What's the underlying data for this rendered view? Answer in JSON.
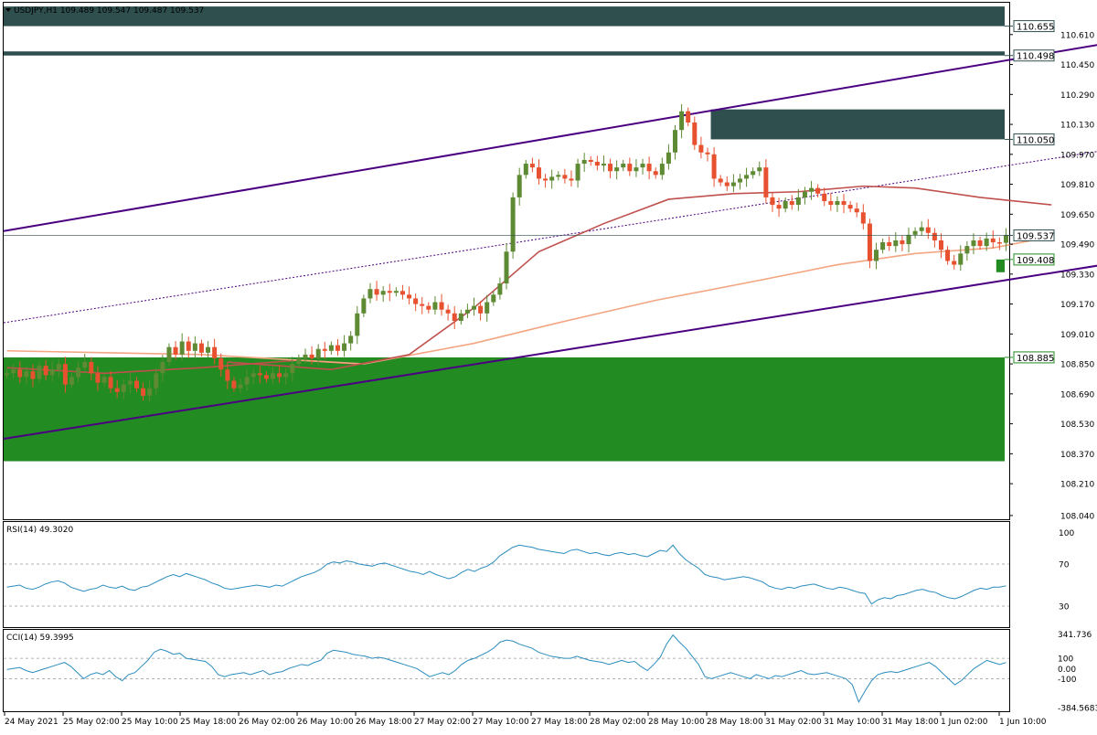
{
  "main": {
    "header": "USDJPY,H1  109.489 109.547 109.487 109.537",
    "symbol": "USDJPY,H1",
    "ohlc": "109.489 109.547 109.487 109.537"
  },
  "rsi": {
    "label": "RSI(14) 49.3020"
  },
  "cci": {
    "label": "CCI(14) 59.3995"
  },
  "colors": {
    "bull": "#5d8a33",
    "bear": "#e8512f",
    "zone_green": "#228b22",
    "zone_dark": "#2f4f4f",
    "channel": "#4b0082",
    "ma_fast": "#f4a582",
    "ma_slow": "#c0504d",
    "indicator": "#2b8cbe"
  },
  "chart_data": [
    {
      "type": "candlestick",
      "title": "USDJPY,H1",
      "ylim": [
        108.02,
        110.78
      ],
      "y_ticks": [
        "110.610",
        "110.450",
        "110.290",
        "110.130",
        "109.970",
        "109.810",
        "109.650",
        "109.490",
        "109.330",
        "109.170",
        "109.010",
        "108.850",
        "108.690",
        "108.530",
        "108.370",
        "108.210",
        "108.040"
      ],
      "y_tick_values": [
        110.61,
        110.45,
        110.29,
        110.13,
        109.97,
        109.81,
        109.65,
        109.49,
        109.33,
        109.17,
        109.01,
        108.85,
        108.69,
        108.53,
        108.37,
        108.21,
        108.04
      ],
      "x_ticks": [
        "24 May 2021",
        "25 May 02:00",
        "25 May 10:00",
        "25 May 18:00",
        "26 May 02:00",
        "26 May 10:00",
        "26 May 18:00",
        "27 May 02:00",
        "27 May 10:00",
        "27 May 18:00",
        "28 May 02:00",
        "28 May 10:00",
        "28 May 18:00",
        "31 May 02:00",
        "31 May 10:00",
        "31 May 18:00",
        "1 Jun 02:00",
        "1 Jun 10:00"
      ],
      "levels": [
        {
          "label": "110.655",
          "value": 110.655
        },
        {
          "label": "110.498",
          "value": 110.498
        },
        {
          "label": "110.050",
          "value": 110.05
        },
        {
          "label": "109.537",
          "value": 109.537
        },
        {
          "label": "109.408",
          "value": 109.408
        },
        {
          "label": "108.885",
          "value": 108.885
        }
      ],
      "zones": [
        {
          "kind": "resistance",
          "from": 110.655,
          "to": 110.76,
          "x_from": 0,
          "x_to": 161
        },
        {
          "kind": "resistance",
          "from": 110.498,
          "to": 110.52,
          "x_from": 0,
          "x_to": 161
        },
        {
          "kind": "resistance",
          "from": 110.05,
          "to": 110.21,
          "x_from": 109,
          "x_to": 161
        },
        {
          "kind": "support",
          "from": 109.34,
          "to": 109.408,
          "x_from": 153,
          "x_to": 161
        },
        {
          "kind": "support",
          "from": 108.33,
          "to": 108.885,
          "x_from": 0,
          "x_to": 161
        }
      ],
      "channel": {
        "upper": [
          [
            0,
            109.56
          ],
          [
            169.5,
            110.56
          ]
        ],
        "lower": [
          [
            0,
            108.45
          ],
          [
            169.5,
            109.38
          ]
        ],
        "middle": [
          [
            0,
            109.07
          ],
          [
            169.5,
            109.99
          ]
        ]
      },
      "close": [
        108.8,
        108.82,
        108.78,
        108.81,
        108.77,
        108.84,
        108.79,
        108.82,
        108.85,
        108.74,
        108.78,
        108.83,
        108.86,
        108.8,
        108.75,
        108.78,
        108.72,
        108.7,
        108.74,
        108.76,
        108.72,
        108.68,
        108.72,
        108.8,
        108.86,
        108.94,
        108.9,
        108.97,
        108.92,
        108.96,
        108.91,
        108.94,
        108.88,
        108.82,
        108.76,
        108.72,
        108.74,
        108.78,
        108.8,
        108.79,
        108.77,
        108.8,
        108.78,
        108.8,
        108.85,
        108.88,
        108.9,
        108.88,
        108.93,
        108.92,
        108.95,
        108.92,
        108.96,
        109.0,
        109.12,
        109.2,
        109.25,
        109.22,
        109.24,
        109.23,
        109.24,
        109.22,
        109.2,
        109.17,
        109.16,
        109.14,
        109.18,
        109.14,
        109.12,
        109.08,
        109.12,
        109.14,
        109.16,
        109.12,
        109.18,
        109.22,
        109.28,
        109.45,
        109.74,
        109.86,
        109.92,
        109.9,
        109.84,
        109.83,
        109.85,
        109.86,
        109.84,
        109.83,
        109.92,
        109.94,
        109.93,
        109.91,
        109.92,
        109.88,
        109.9,
        109.92,
        109.88,
        109.9,
        109.92,
        109.88,
        109.86,
        109.92,
        109.98,
        110.1,
        110.2,
        110.14,
        110.02,
        109.98,
        109.97,
        109.84,
        109.82,
        109.8,
        109.82,
        109.84,
        109.86,
        109.88,
        109.9,
        109.74,
        109.7,
        109.68,
        109.72,
        109.7,
        109.74,
        109.77,
        109.79,
        109.76,
        109.72,
        109.7,
        109.72,
        109.7,
        109.68,
        109.66,
        109.6,
        109.4,
        109.46,
        109.5,
        109.48,
        109.51,
        109.49,
        109.54,
        109.56,
        109.58,
        109.55,
        109.51,
        109.46,
        109.4,
        109.38,
        109.44,
        109.48,
        109.51,
        109.48,
        109.52,
        109.5,
        109.497,
        109.537
      ],
      "ma_slow": {
        "name": "",
        "from": 34,
        "points": [
          [
            34,
            108.86
          ],
          [
            50,
            108.82
          ],
          [
            62,
            108.9
          ],
          [
            72,
            109.15
          ],
          [
            82,
            109.45
          ],
          [
            92,
            109.6
          ],
          [
            102,
            109.73
          ],
          [
            112,
            109.76
          ],
          [
            122,
            109.77
          ],
          [
            132,
            109.8
          ],
          [
            140,
            109.79
          ],
          [
            150,
            109.74
          ],
          [
            161,
            109.7
          ]
        ]
      },
      "ma_fast": {
        "name": "",
        "points": [
          [
            0,
            108.92
          ],
          [
            30,
            108.9
          ],
          [
            55,
            108.85
          ],
          [
            72,
            108.96
          ],
          [
            85,
            109.07
          ],
          [
            100,
            109.19
          ],
          [
            115,
            109.29
          ],
          [
            128,
            109.38
          ],
          [
            140,
            109.44
          ],
          [
            152,
            109.47
          ],
          [
            161,
            109.53
          ]
        ]
      },
      "ma_early": {
        "name": "",
        "points": [
          [
            0,
            108.83
          ],
          [
            15,
            108.8
          ],
          [
            30,
            108.83
          ],
          [
            45,
            108.87
          ],
          [
            54,
            108.85
          ]
        ]
      }
    },
    {
      "type": "line",
      "title": "RSI(14) 49.3020",
      "ylim": [
        10,
        110
      ],
      "y_ticks": [
        "100",
        "70",
        "30"
      ],
      "y_tick_values": [
        100,
        70,
        30
      ],
      "levels": [
        70,
        30
      ],
      "values": [
        48,
        49,
        50,
        47,
        46,
        48,
        51,
        53,
        54,
        52,
        48,
        46,
        44,
        46,
        47,
        50,
        48,
        47,
        49,
        46,
        45,
        48,
        49,
        52,
        55,
        58,
        60,
        58,
        61,
        59,
        57,
        55,
        52,
        50,
        47,
        46,
        47,
        48,
        49,
        50,
        49,
        48,
        50,
        49,
        52,
        55,
        58,
        60,
        62,
        65,
        70,
        72,
        71,
        73,
        72,
        70,
        69,
        68,
        70,
        71,
        69,
        67,
        65,
        63,
        62,
        60,
        63,
        60,
        58,
        56,
        58,
        62,
        65,
        63,
        66,
        68,
        72,
        78,
        82,
        86,
        88,
        87,
        86,
        84,
        83,
        82,
        81,
        80,
        83,
        84,
        82,
        80,
        81,
        79,
        78,
        80,
        81,
        79,
        80,
        78,
        77,
        80,
        83,
        82,
        88,
        80,
        74,
        70,
        66,
        60,
        58,
        57,
        55,
        56,
        57,
        58,
        57,
        55,
        53,
        49,
        47,
        46,
        48,
        47,
        49,
        50,
        51,
        49,
        47,
        46,
        48,
        47,
        45,
        43,
        42,
        32,
        36,
        38,
        37,
        40,
        41,
        43,
        45,
        46,
        44,
        43,
        40,
        38,
        37,
        39,
        42,
        45,
        47,
        46,
        48,
        48,
        49.3
      ]
    },
    {
      "type": "line",
      "title": "CCI(14) 59.3995",
      "ylim": [
        -420,
        380
      ],
      "y_ticks": [
        "341.736",
        "100",
        "0.00",
        "-100",
        "-384.5683"
      ],
      "y_tick_values": [
        341.736,
        100,
        0,
        -100,
        -384.5683
      ],
      "levels": [
        100,
        -100
      ],
      "values": [
        -10,
        0,
        10,
        -20,
        -40,
        -20,
        0,
        20,
        40,
        60,
        20,
        -40,
        -100,
        -60,
        -40,
        -60,
        -20,
        -80,
        -120,
        -60,
        -40,
        20,
        80,
        160,
        190,
        170,
        140,
        150,
        100,
        90,
        80,
        70,
        20,
        -60,
        -80,
        -60,
        -50,
        -40,
        -60,
        -40,
        -20,
        -60,
        -40,
        -30,
        0,
        20,
        40,
        30,
        60,
        80,
        150,
        180,
        170,
        160,
        140,
        130,
        120,
        100,
        110,
        100,
        80,
        60,
        40,
        20,
        0,
        -40,
        -80,
        -60,
        -40,
        -60,
        -20,
        40,
        80,
        100,
        130,
        160,
        200,
        260,
        280,
        270,
        240,
        220,
        200,
        160,
        140,
        120,
        110,
        100,
        100,
        120,
        100,
        80,
        70,
        60,
        40,
        60,
        80,
        60,
        70,
        20,
        -20,
        40,
        110,
        240,
        330,
        260,
        200,
        120,
        40,
        -80,
        -100,
        -80,
        -60,
        -40,
        -60,
        -80,
        -100,
        -60,
        -80,
        -100,
        -70,
        -80,
        -60,
        -40,
        -20,
        -50,
        -60,
        -50,
        -40,
        -60,
        -80,
        -100,
        -160,
        -330,
        -220,
        -120,
        -60,
        -40,
        -30,
        -40,
        -20,
        0,
        20,
        40,
        60,
        20,
        -40,
        -100,
        -160,
        -120,
        -60,
        0,
        40,
        80,
        60,
        40,
        59.4
      ]
    }
  ]
}
